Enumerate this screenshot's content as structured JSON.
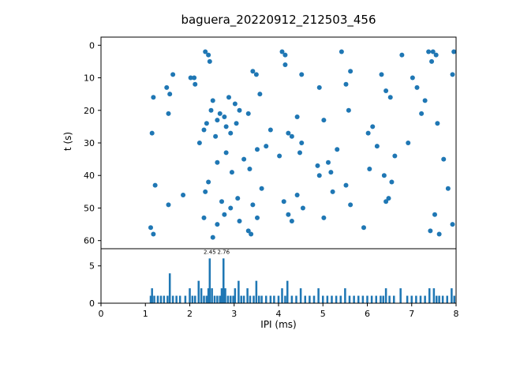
{
  "figure": {
    "background": "#ffffff",
    "axis_color": "#000000",
    "accent_color": "#1f77b4"
  },
  "chart_data": [
    {
      "type": "scatter",
      "title": "baguera_20220912_212503_456",
      "xlabel": "",
      "ylabel": "t (s)",
      "xlim": [
        0,
        8
      ],
      "ymin": -2.5,
      "ymax": 62.5,
      "y_inverted": true,
      "xticks": [
        0,
        1,
        2,
        3,
        4,
        5,
        6,
        7,
        8
      ],
      "yticks": [
        0,
        10,
        20,
        30,
        40,
        50,
        60
      ],
      "marker_color": "#1f77b4",
      "marker_radius": 3,
      "points": [
        [
          2.35,
          2
        ],
        [
          2.42,
          3
        ],
        [
          4.08,
          2
        ],
        [
          4.15,
          3
        ],
        [
          5.42,
          2
        ],
        [
          6.78,
          3
        ],
        [
          7.38,
          2
        ],
        [
          7.48,
          2
        ],
        [
          7.55,
          3
        ],
        [
          7.95,
          2
        ],
        [
          2.45,
          5
        ],
        [
          4.15,
          6
        ],
        [
          7.45,
          5
        ],
        [
          1.62,
          9
        ],
        [
          2.02,
          10
        ],
        [
          2.1,
          10
        ],
        [
          3.42,
          8
        ],
        [
          3.5,
          9
        ],
        [
          4.52,
          9
        ],
        [
          5.62,
          8
        ],
        [
          6.32,
          9
        ],
        [
          7.02,
          10
        ],
        [
          7.92,
          9
        ],
        [
          1.48,
          13
        ],
        [
          2.12,
          12
        ],
        [
          4.92,
          13
        ],
        [
          5.52,
          12
        ],
        [
          6.42,
          14
        ],
        [
          7.12,
          13
        ],
        [
          1.18,
          16
        ],
        [
          1.55,
          15
        ],
        [
          2.52,
          17
        ],
        [
          2.88,
          16
        ],
        [
          3.02,
          18
        ],
        [
          3.58,
          15
        ],
        [
          6.52,
          16
        ],
        [
          7.3,
          17
        ],
        [
          1.52,
          21
        ],
        [
          2.48,
          20
        ],
        [
          2.68,
          21
        ],
        [
          2.78,
          22
        ],
        [
          3.12,
          20
        ],
        [
          3.32,
          21
        ],
        [
          4.42,
          22
        ],
        [
          5.58,
          20
        ],
        [
          7.22,
          21
        ],
        [
          2.38,
          24
        ],
        [
          2.62,
          23
        ],
        [
          2.82,
          25
        ],
        [
          3.05,
          24
        ],
        [
          5.02,
          23
        ],
        [
          6.12,
          25
        ],
        [
          7.58,
          24
        ],
        [
          1.15,
          27
        ],
        [
          2.32,
          26
        ],
        [
          2.58,
          28
        ],
        [
          2.92,
          27
        ],
        [
          3.82,
          26
        ],
        [
          4.22,
          27
        ],
        [
          4.3,
          28
        ],
        [
          6.02,
          27
        ],
        [
          2.22,
          30
        ],
        [
          3.72,
          31
        ],
        [
          4.52,
          30
        ],
        [
          6.22,
          31
        ],
        [
          6.92,
          30
        ],
        [
          2.82,
          33
        ],
        [
          3.52,
          32
        ],
        [
          4.02,
          34
        ],
        [
          4.48,
          33
        ],
        [
          5.32,
          32
        ],
        [
          6.62,
          34
        ],
        [
          2.62,
          36
        ],
        [
          3.22,
          35
        ],
        [
          4.88,
          37
        ],
        [
          5.12,
          36
        ],
        [
          7.72,
          35
        ],
        [
          2.95,
          39
        ],
        [
          3.35,
          38
        ],
        [
          4.92,
          40
        ],
        [
          5.18,
          39
        ],
        [
          6.05,
          38
        ],
        [
          6.38,
          40
        ],
        [
          1.22,
          43
        ],
        [
          2.42,
          42
        ],
        [
          3.62,
          44
        ],
        [
          5.52,
          43
        ],
        [
          6.55,
          42
        ],
        [
          7.82,
          44
        ],
        [
          1.85,
          46
        ],
        [
          2.35,
          45
        ],
        [
          3.08,
          47
        ],
        [
          4.42,
          46
        ],
        [
          5.22,
          45
        ],
        [
          6.48,
          47
        ],
        [
          1.52,
          49
        ],
        [
          2.72,
          48
        ],
        [
          2.92,
          50
        ],
        [
          3.42,
          49
        ],
        [
          4.12,
          48
        ],
        [
          4.55,
          50
        ],
        [
          5.62,
          49
        ],
        [
          6.42,
          48
        ],
        [
          2.32,
          53
        ],
        [
          2.78,
          52
        ],
        [
          3.12,
          54
        ],
        [
          3.52,
          53
        ],
        [
          4.22,
          52
        ],
        [
          4.3,
          54
        ],
        [
          5.02,
          53
        ],
        [
          7.52,
          52
        ],
        [
          1.12,
          56
        ],
        [
          2.62,
          55
        ],
        [
          3.32,
          57
        ],
        [
          5.92,
          56
        ],
        [
          7.42,
          57
        ],
        [
          7.92,
          55
        ],
        [
          1.18,
          58
        ],
        [
          2.52,
          59
        ],
        [
          3.38,
          58
        ],
        [
          7.62,
          58
        ]
      ]
    },
    {
      "type": "bar",
      "xlabel": "IPI (ms)",
      "ylabel": "",
      "xlim": [
        0,
        8
      ],
      "ylim": [
        0,
        7.3
      ],
      "xticks": [
        0,
        1,
        2,
        3,
        4,
        5,
        6,
        7,
        8
      ],
      "yticks": [
        0,
        5
      ],
      "bar_color": "#1f77b4",
      "bar_width": 0.045,
      "annotations": [
        {
          "text": "2.45",
          "x": 2.45,
          "y": 6.6
        },
        {
          "text": "2.76",
          "x": 2.76,
          "y": 6.6
        }
      ],
      "bars": [
        [
          1.12,
          1
        ],
        [
          1.15,
          2
        ],
        [
          1.2,
          1
        ],
        [
          1.28,
          1
        ],
        [
          1.35,
          1
        ],
        [
          1.42,
          1
        ],
        [
          1.5,
          1
        ],
        [
          1.55,
          4
        ],
        [
          1.62,
          1
        ],
        [
          1.7,
          1
        ],
        [
          1.78,
          1
        ],
        [
          1.9,
          1
        ],
        [
          2.0,
          2
        ],
        [
          2.06,
          1
        ],
        [
          2.12,
          1
        ],
        [
          2.2,
          3
        ],
        [
          2.26,
          2
        ],
        [
          2.32,
          1
        ],
        [
          2.38,
          1
        ],
        [
          2.42,
          2
        ],
        [
          2.45,
          6
        ],
        [
          2.5,
          2
        ],
        [
          2.56,
          1
        ],
        [
          2.62,
          1
        ],
        [
          2.68,
          1
        ],
        [
          2.72,
          2
        ],
        [
          2.76,
          6
        ],
        [
          2.8,
          2
        ],
        [
          2.86,
          1
        ],
        [
          2.92,
          1
        ],
        [
          2.98,
          1
        ],
        [
          3.02,
          2
        ],
        [
          3.1,
          3
        ],
        [
          3.16,
          1
        ],
        [
          3.22,
          1
        ],
        [
          3.3,
          2
        ],
        [
          3.36,
          1
        ],
        [
          3.44,
          1
        ],
        [
          3.5,
          3
        ],
        [
          3.56,
          1
        ],
        [
          3.62,
          1
        ],
        [
          3.72,
          1
        ],
        [
          3.82,
          1
        ],
        [
          3.9,
          1
        ],
        [
          4.0,
          1
        ],
        [
          4.08,
          2
        ],
        [
          4.15,
          1
        ],
        [
          4.2,
          3
        ],
        [
          4.3,
          1
        ],
        [
          4.4,
          1
        ],
        [
          4.5,
          2
        ],
        [
          4.6,
          1
        ],
        [
          4.7,
          1
        ],
        [
          4.8,
          1
        ],
        [
          4.9,
          2
        ],
        [
          5.0,
          1
        ],
        [
          5.1,
          1
        ],
        [
          5.2,
          1
        ],
        [
          5.3,
          1
        ],
        [
          5.4,
          1
        ],
        [
          5.5,
          2
        ],
        [
          5.6,
          1
        ],
        [
          5.7,
          1
        ],
        [
          5.8,
          1
        ],
        [
          5.9,
          1
        ],
        [
          6.0,
          1
        ],
        [
          6.1,
          1
        ],
        [
          6.2,
          1
        ],
        [
          6.3,
          1
        ],
        [
          6.36,
          1
        ],
        [
          6.42,
          2
        ],
        [
          6.5,
          1
        ],
        [
          6.6,
          1
        ],
        [
          6.75,
          2
        ],
        [
          6.9,
          1
        ],
        [
          7.0,
          1
        ],
        [
          7.1,
          1
        ],
        [
          7.2,
          1
        ],
        [
          7.3,
          1
        ],
        [
          7.4,
          2
        ],
        [
          7.5,
          2
        ],
        [
          7.56,
          1
        ],
        [
          7.62,
          1
        ],
        [
          7.7,
          1
        ],
        [
          7.8,
          1
        ],
        [
          7.9,
          2
        ],
        [
          7.96,
          1
        ]
      ]
    }
  ]
}
